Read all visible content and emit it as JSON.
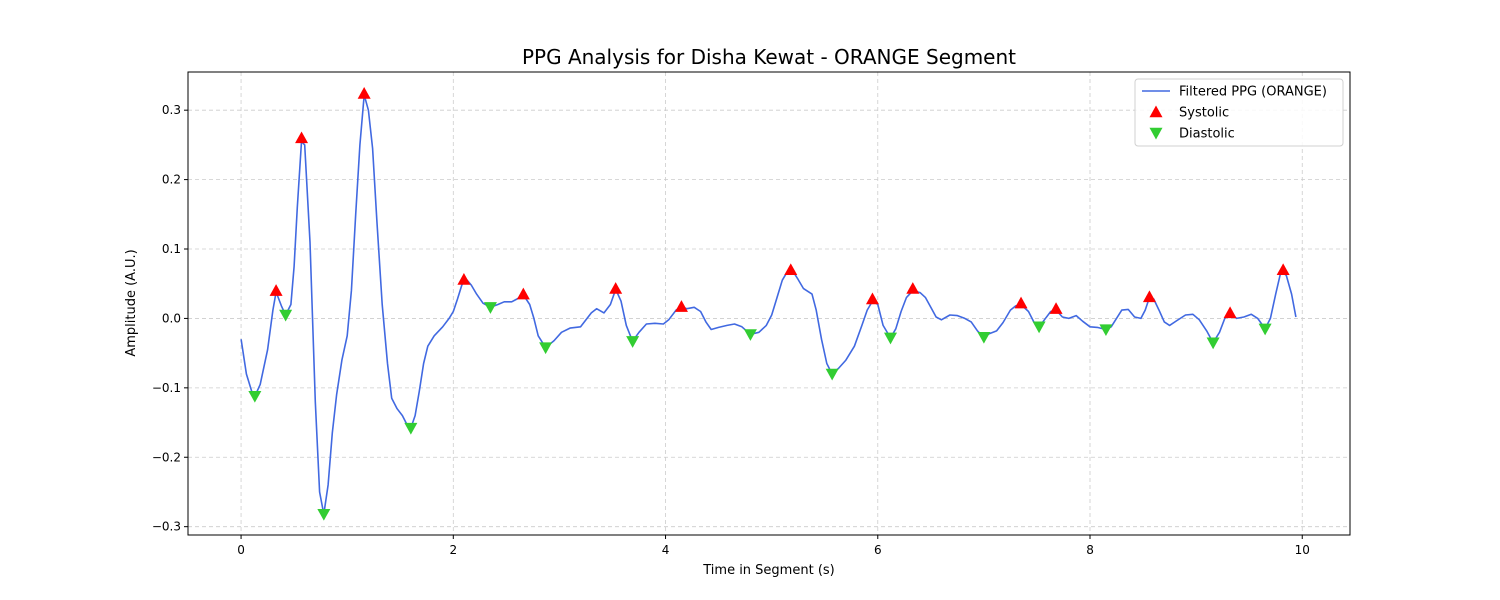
{
  "chart_data": {
    "type": "line",
    "title": "PPG Analysis for Disha Kewat - ORANGE Segment",
    "xlabel": "Time in Segment (s)",
    "ylabel": "Amplitude (A.U.)",
    "xlim": [
      -0.5,
      10.45
    ],
    "ylim": [
      -0.312,
      0.355
    ],
    "x_ticks": [
      0,
      2,
      4,
      6,
      8,
      10
    ],
    "x_tick_labels": [
      "0",
      "2",
      "4",
      "6",
      "8",
      "10"
    ],
    "y_ticks": [
      -0.3,
      -0.2,
      -0.1,
      0.0,
      0.1,
      0.2,
      0.3
    ],
    "y_tick_labels": [
      "−0.3",
      "−0.2",
      "−0.1",
      "0.0",
      "0.1",
      "0.2",
      "0.3"
    ],
    "grid": true,
    "legend_position": "top-right",
    "colors": {
      "line": "#4169e1",
      "systolic": "#ff0000",
      "diastolic": "#32cd32",
      "grid": "#cccccc"
    },
    "series": [
      {
        "name": "Filtered PPG (ORANGE)",
        "kind": "line",
        "points": [
          [
            0.0,
            -0.03
          ],
          [
            0.05,
            -0.08
          ],
          [
            0.1,
            -0.105
          ],
          [
            0.13,
            -0.112
          ],
          [
            0.18,
            -0.095
          ],
          [
            0.25,
            -0.045
          ],
          [
            0.3,
            0.012
          ],
          [
            0.33,
            0.038
          ],
          [
            0.38,
            0.018
          ],
          [
            0.42,
            0.005
          ],
          [
            0.47,
            0.02
          ],
          [
            0.5,
            0.075
          ],
          [
            0.53,
            0.16
          ],
          [
            0.57,
            0.255
          ],
          [
            0.6,
            0.25
          ],
          [
            0.65,
            0.11
          ],
          [
            0.7,
            -0.12
          ],
          [
            0.74,
            -0.25
          ],
          [
            0.78,
            -0.282
          ],
          [
            0.82,
            -0.24
          ],
          [
            0.86,
            -0.165
          ],
          [
            0.9,
            -0.11
          ],
          [
            0.95,
            -0.06
          ],
          [
            1.0,
            -0.025
          ],
          [
            1.04,
            0.04
          ],
          [
            1.08,
            0.15
          ],
          [
            1.12,
            0.25
          ],
          [
            1.16,
            0.322
          ],
          [
            1.2,
            0.3
          ],
          [
            1.24,
            0.245
          ],
          [
            1.28,
            0.14
          ],
          [
            1.33,
            0.02
          ],
          [
            1.38,
            -0.065
          ],
          [
            1.42,
            -0.115
          ],
          [
            1.47,
            -0.13
          ],
          [
            1.52,
            -0.14
          ],
          [
            1.56,
            -0.152
          ],
          [
            1.6,
            -0.158
          ],
          [
            1.64,
            -0.14
          ],
          [
            1.68,
            -0.105
          ],
          [
            1.72,
            -0.065
          ],
          [
            1.76,
            -0.04
          ],
          [
            1.82,
            -0.025
          ],
          [
            1.9,
            -0.012
          ],
          [
            1.96,
            0.0
          ],
          [
            2.0,
            0.01
          ],
          [
            2.04,
            0.028
          ],
          [
            2.08,
            0.048
          ],
          [
            2.12,
            0.057
          ],
          [
            2.17,
            0.048
          ],
          [
            2.22,
            0.035
          ],
          [
            2.28,
            0.022
          ],
          [
            2.35,
            0.016
          ],
          [
            2.42,
            0.02
          ],
          [
            2.48,
            0.024
          ],
          [
            2.55,
            0.024
          ],
          [
            2.6,
            0.028
          ],
          [
            2.66,
            0.034
          ],
          [
            2.72,
            0.02
          ],
          [
            2.76,
            0.0
          ],
          [
            2.8,
            -0.025
          ],
          [
            2.87,
            -0.042
          ],
          [
            2.95,
            -0.032
          ],
          [
            3.02,
            -0.02
          ],
          [
            3.1,
            -0.014
          ],
          [
            3.2,
            -0.012
          ],
          [
            3.3,
            0.008
          ],
          [
            3.35,
            0.014
          ],
          [
            3.42,
            0.008
          ],
          [
            3.48,
            0.02
          ],
          [
            3.53,
            0.042
          ],
          [
            3.58,
            0.025
          ],
          [
            3.63,
            -0.01
          ],
          [
            3.69,
            -0.033
          ],
          [
            3.75,
            -0.02
          ],
          [
            3.82,
            -0.008
          ],
          [
            3.9,
            -0.007
          ],
          [
            3.98,
            -0.008
          ],
          [
            4.03,
            -0.002
          ],
          [
            4.1,
            0.012
          ],
          [
            4.15,
            0.017
          ],
          [
            4.2,
            0.014
          ],
          [
            4.27,
            0.016
          ],
          [
            4.33,
            0.01
          ],
          [
            4.38,
            -0.005
          ],
          [
            4.43,
            -0.016
          ],
          [
            4.5,
            -0.013
          ],
          [
            4.58,
            -0.01
          ],
          [
            4.65,
            -0.008
          ],
          [
            4.72,
            -0.012
          ],
          [
            4.8,
            -0.023
          ],
          [
            4.88,
            -0.02
          ],
          [
            4.95,
            -0.01
          ],
          [
            5.0,
            0.005
          ],
          [
            5.05,
            0.03
          ],
          [
            5.1,
            0.055
          ],
          [
            5.15,
            0.068
          ],
          [
            5.2,
            0.068
          ],
          [
            5.25,
            0.056
          ],
          [
            5.3,
            0.043
          ],
          [
            5.38,
            0.035
          ],
          [
            5.42,
            0.012
          ],
          [
            5.47,
            -0.03
          ],
          [
            5.52,
            -0.065
          ],
          [
            5.57,
            -0.08
          ],
          [
            5.63,
            -0.072
          ],
          [
            5.7,
            -0.06
          ],
          [
            5.78,
            -0.04
          ],
          [
            5.85,
            -0.01
          ],
          [
            5.9,
            0.012
          ],
          [
            5.95,
            0.025
          ],
          [
            6.0,
            0.02
          ],
          [
            6.05,
            -0.01
          ],
          [
            6.12,
            -0.028
          ],
          [
            6.17,
            -0.015
          ],
          [
            6.22,
            0.01
          ],
          [
            6.27,
            0.03
          ],
          [
            6.33,
            0.04
          ],
          [
            6.4,
            0.037
          ],
          [
            6.45,
            0.03
          ],
          [
            6.5,
            0.016
          ],
          [
            6.55,
            0.002
          ],
          [
            6.6,
            -0.002
          ],
          [
            6.68,
            0.005
          ],
          [
            6.75,
            0.004
          ],
          [
            6.82,
            0.0
          ],
          [
            6.88,
            -0.005
          ],
          [
            6.94,
            -0.018
          ],
          [
            7.0,
            -0.027
          ],
          [
            7.05,
            -0.022
          ],
          [
            7.12,
            -0.018
          ],
          [
            7.18,
            -0.006
          ],
          [
            7.25,
            0.012
          ],
          [
            7.3,
            0.018
          ],
          [
            7.35,
            0.02
          ],
          [
            7.42,
            0.01
          ],
          [
            7.47,
            -0.005
          ],
          [
            7.52,
            -0.012
          ],
          [
            7.57,
            -0.002
          ],
          [
            7.63,
            0.01
          ],
          [
            7.68,
            0.012
          ],
          [
            7.74,
            0.002
          ],
          [
            7.8,
            0.0
          ],
          [
            7.87,
            0.004
          ],
          [
            7.93,
            -0.004
          ],
          [
            8.0,
            -0.012
          ],
          [
            8.07,
            -0.013
          ],
          [
            8.15,
            -0.016
          ],
          [
            8.2,
            -0.012
          ],
          [
            8.25,
            0.0
          ],
          [
            8.3,
            0.012
          ],
          [
            8.36,
            0.013
          ],
          [
            8.42,
            0.002
          ],
          [
            8.48,
            0.0
          ],
          [
            8.52,
            0.012
          ],
          [
            8.56,
            0.03
          ],
          [
            8.6,
            0.028
          ],
          [
            8.65,
            0.012
          ],
          [
            8.7,
            -0.005
          ],
          [
            8.75,
            -0.01
          ],
          [
            8.82,
            -0.003
          ],
          [
            8.9,
            0.005
          ],
          [
            8.97,
            0.006
          ],
          [
            9.03,
            -0.002
          ],
          [
            9.1,
            -0.018
          ],
          [
            9.16,
            -0.035
          ],
          [
            9.22,
            -0.02
          ],
          [
            9.27,
            0.0
          ],
          [
            9.32,
            0.008
          ],
          [
            9.38,
            0.0
          ],
          [
            9.45,
            0.002
          ],
          [
            9.52,
            0.006
          ],
          [
            9.58,
            0.0
          ],
          [
            9.65,
            -0.015
          ],
          [
            9.7,
            0.0
          ],
          [
            9.75,
            0.035
          ],
          [
            9.8,
            0.068
          ],
          [
            9.85,
            0.062
          ],
          [
            9.9,
            0.035
          ],
          [
            9.94,
            0.002
          ]
        ]
      },
      {
        "name": "Systolic",
        "kind": "marker-up",
        "points": [
          [
            0.33,
            0.04
          ],
          [
            0.57,
            0.26
          ],
          [
            1.16,
            0.324
          ],
          [
            2.1,
            0.056
          ],
          [
            2.66,
            0.035
          ],
          [
            3.53,
            0.043
          ],
          [
            4.15,
            0.017
          ],
          [
            5.18,
            0.07
          ],
          [
            5.95,
            0.028
          ],
          [
            6.33,
            0.043
          ],
          [
            7.35,
            0.022
          ],
          [
            7.68,
            0.014
          ],
          [
            8.56,
            0.031
          ],
          [
            9.32,
            0.008
          ],
          [
            9.82,
            0.07
          ]
        ]
      },
      {
        "name": "Diastolic",
        "kind": "marker-down",
        "points": [
          [
            0.13,
            -0.112
          ],
          [
            0.42,
            0.005
          ],
          [
            0.78,
            -0.282
          ],
          [
            1.6,
            -0.158
          ],
          [
            2.35,
            0.016
          ],
          [
            2.87,
            -0.042
          ],
          [
            3.69,
            -0.033
          ],
          [
            4.8,
            -0.023
          ],
          [
            5.57,
            -0.08
          ],
          [
            6.12,
            -0.028
          ],
          [
            7.0,
            -0.027
          ],
          [
            7.52,
            -0.012
          ],
          [
            8.15,
            -0.016
          ],
          [
            9.16,
            -0.035
          ],
          [
            9.65,
            -0.015
          ]
        ]
      }
    ]
  }
}
